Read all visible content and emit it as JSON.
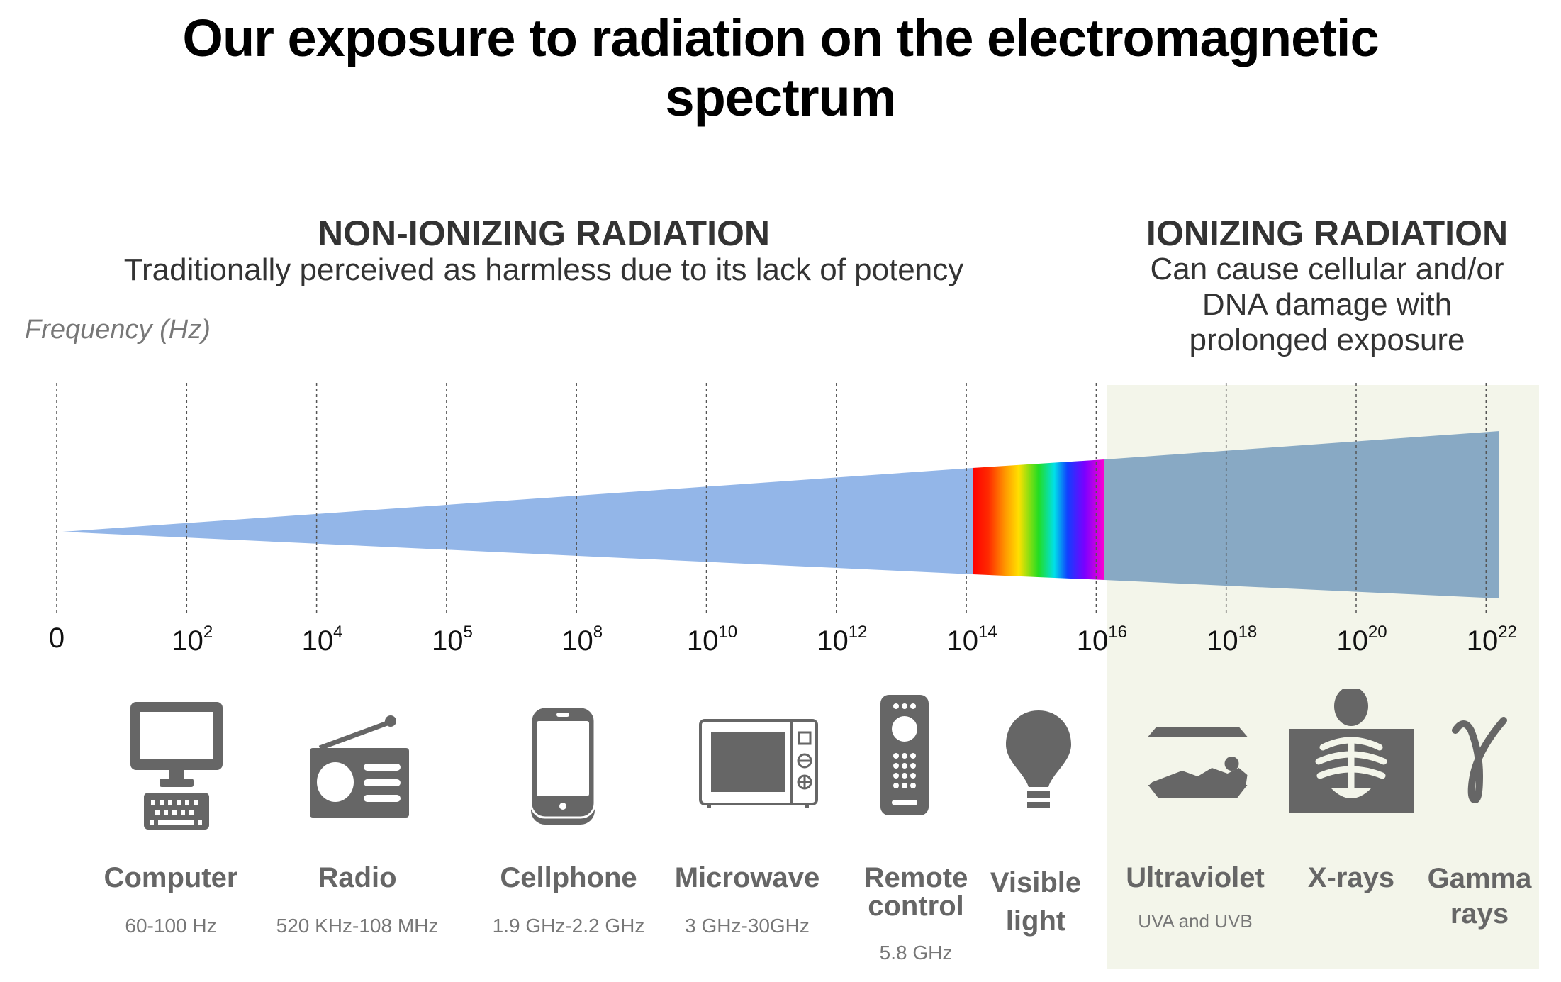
{
  "title": {
    "line1": "Our exposure to radiation on the electromagnetic",
    "line2": "spectrum"
  },
  "non_ionizing": {
    "heading": "NON-IONIZING RADIATION",
    "description": "Traditionally perceived as harmless due to its lack of potency"
  },
  "ionizing": {
    "heading": "IONIZING RADIATION",
    "description_lines": [
      "Can cause cellular and/or",
      "DNA damage with",
      "prolonged exposure"
    ]
  },
  "axis_label": "Frequency (Hz)",
  "ticks": [
    {
      "base": "0",
      "exp": ""
    },
    {
      "base": "10",
      "exp": "2"
    },
    {
      "base": "10",
      "exp": "4"
    },
    {
      "base": "10",
      "exp": "5"
    },
    {
      "base": "10",
      "exp": "8"
    },
    {
      "base": "10",
      "exp": "10"
    },
    {
      "base": "10",
      "exp": "12"
    },
    {
      "base": "10",
      "exp": "14"
    },
    {
      "base": "10",
      "exp": "16"
    },
    {
      "base": "10",
      "exp": "18"
    },
    {
      "base": "10",
      "exp": "20"
    },
    {
      "base": "10",
      "exp": "22"
    }
  ],
  "sources": [
    {
      "name": "Computer",
      "range": "60-100 Hz",
      "icon": "computer-icon"
    },
    {
      "name": "Radio",
      "range": "520 KHz-108 MHz",
      "icon": "radio-icon"
    },
    {
      "name": "Cellphone",
      "range": "1.9 GHz-2.2 GHz",
      "icon": "cellphone-icon"
    },
    {
      "name": "Microwave",
      "range": "3 GHz-30GHz",
      "icon": "microwave-icon"
    },
    {
      "name_lines": [
        "Remote",
        "control"
      ],
      "range": "5.8 GHz",
      "icon": "remote-control-icon"
    },
    {
      "name_lines": [
        "Visible",
        "light"
      ],
      "icon": "light-bulb-icon"
    },
    {
      "name": "Ultraviolet",
      "range": "UVA and UVB",
      "icon": "tanning-bed-icon"
    },
    {
      "name": "X-rays",
      "icon": "x-ray-icon"
    },
    {
      "name_lines": [
        "Gamma",
        "rays"
      ],
      "icon": "gamma-icon"
    }
  ],
  "colors": {
    "non_ionizing_band": "#93b6e8",
    "ionizing_band": "#88a9c4",
    "ionizing_panel": "#f3f5ea",
    "icon": "#666666"
  }
}
